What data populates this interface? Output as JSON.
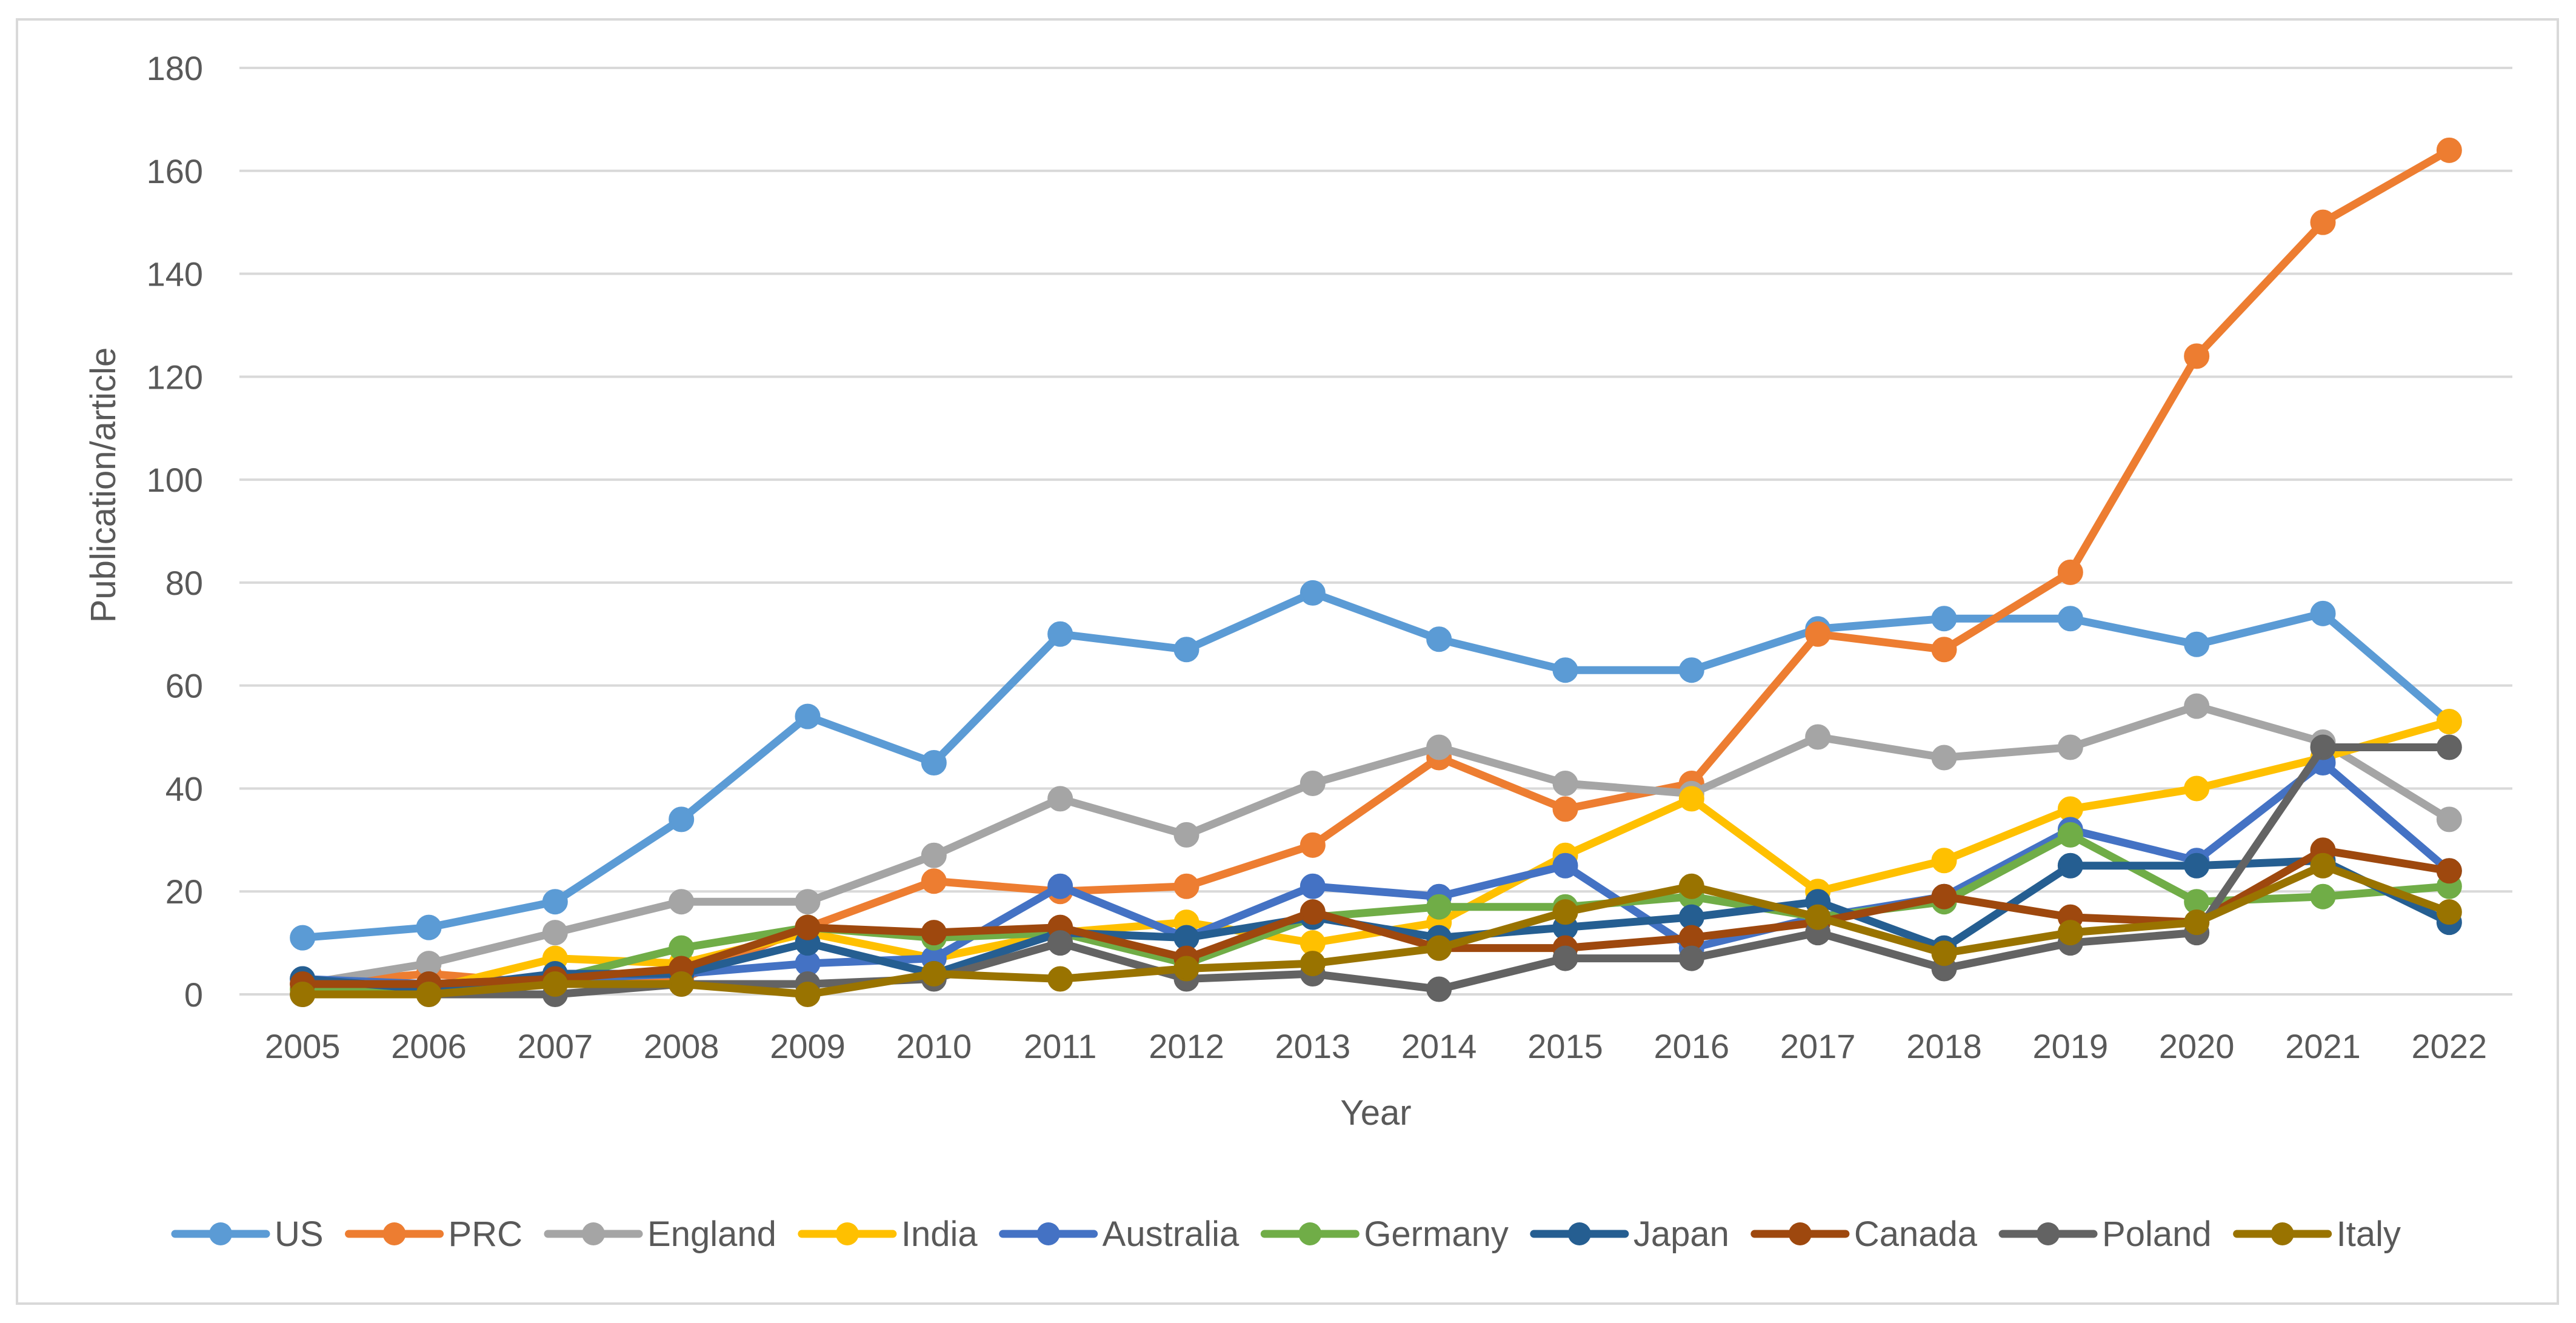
{
  "chart_data": {
    "type": "line",
    "title": "",
    "xlabel": "Year",
    "ylabel": "Publication/article",
    "ylim": [
      0,
      180
    ],
    "yticks": [
      0,
      20,
      40,
      60,
      80,
      100,
      120,
      140,
      160,
      180
    ],
    "grid": true,
    "legend_position": "bottom",
    "categories": [
      "2005",
      "2006",
      "2007",
      "2008",
      "2009",
      "2010",
      "2011",
      "2012",
      "2013",
      "2014",
      "2015",
      "2016",
      "2017",
      "2018",
      "2019",
      "2020",
      "2021",
      "2022"
    ],
    "series": [
      {
        "name": "US",
        "color": "#5B9BD5",
        "values": [
          11,
          13,
          18,
          34,
          54,
          45,
          70,
          67,
          78,
          69,
          63,
          63,
          71,
          73,
          73,
          68,
          74,
          53
        ]
      },
      {
        "name": "PRC",
        "color": "#ED7D31",
        "values": [
          2,
          4,
          2,
          3,
          13,
          22,
          20,
          21,
          29,
          46,
          36,
          41,
          70,
          67,
          82,
          124,
          150,
          164
        ]
      },
      {
        "name": "England",
        "color": "#A5A5A5",
        "values": [
          2,
          6,
          12,
          18,
          18,
          27,
          38,
          31,
          41,
          48,
          41,
          39,
          50,
          46,
          48,
          56,
          49,
          34
        ]
      },
      {
        "name": "India",
        "color": "#FFC000",
        "values": [
          1,
          1,
          7,
          6,
          12,
          7,
          12,
          14,
          10,
          14,
          27,
          38,
          20,
          26,
          36,
          40,
          46,
          53
        ]
      },
      {
        "name": "Australia",
        "color": "#4472C4",
        "values": [
          3,
          2,
          3,
          4,
          6,
          7,
          21,
          11,
          21,
          19,
          25,
          9,
          15,
          19,
          32,
          26,
          45,
          24
        ]
      },
      {
        "name": "Germany",
        "color": "#70AD47",
        "values": [
          1,
          1,
          3,
          9,
          13,
          11,
          12,
          6,
          15,
          17,
          17,
          19,
          15,
          18,
          31,
          18,
          19,
          21
        ]
      },
      {
        "name": "Japan",
        "color": "#255E91",
        "values": [
          3,
          1,
          4,
          4,
          10,
          4,
          12,
          11,
          15,
          11,
          13,
          15,
          18,
          9,
          25,
          25,
          26,
          14
        ]
      },
      {
        "name": "Canada",
        "color": "#9E480E",
        "values": [
          2,
          2,
          3,
          5,
          13,
          12,
          13,
          7,
          16,
          9,
          9,
          11,
          14,
          19,
          15,
          14,
          28,
          24
        ]
      },
      {
        "name": "Poland",
        "color": "#636363",
        "values": [
          0,
          0,
          0,
          2,
          2,
          3,
          10,
          3,
          4,
          1,
          7,
          7,
          12,
          5,
          10,
          12,
          48,
          48
        ]
      },
      {
        "name": "Italy",
        "color": "#997300",
        "values": [
          0,
          0,
          2,
          2,
          0,
          4,
          3,
          5,
          6,
          9,
          16,
          21,
          15,
          8,
          12,
          14,
          25,
          16
        ]
      }
    ]
  }
}
